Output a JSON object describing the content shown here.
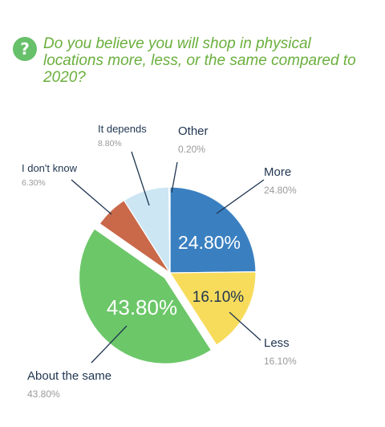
{
  "header": {
    "icon": "question-icon",
    "icon_glyph": "?",
    "question": "Do you believe you will shop in physical locations more, less, or the same compared to 2020?"
  },
  "colors": {
    "question": "#6aaf3d",
    "label": "#1f3550",
    "percent_sub": "#9a9a9a",
    "leader": "#1f3550"
  },
  "chart_data": {
    "type": "pie",
    "start_angle_deg": 0,
    "slices": [
      {
        "label": "More",
        "value": 24.8,
        "percent_label": "24.80%",
        "inner_label": "24.80%",
        "color": "#3a80c1",
        "inner_text_color": "#ffffff",
        "offset": false
      },
      {
        "label": "Less",
        "value": 16.1,
        "percent_label": "16.10%",
        "inner_label": "16.10%",
        "color": "#f7dc5c",
        "inner_text_color": "#1f3550",
        "offset": false
      },
      {
        "label": "About the same",
        "value": 43.8,
        "percent_label": "43.80%",
        "inner_label": "43.80%",
        "color": "#6cc769",
        "inner_text_color": "#ffffff",
        "offset": true
      },
      {
        "label": "I don't know",
        "value": 6.3,
        "percent_label": "6.30%",
        "inner_label": "",
        "color": "#c9694a",
        "inner_text_color": "#ffffff",
        "offset": false
      },
      {
        "label": "It depends",
        "value": 8.8,
        "percent_label": "8.80%",
        "inner_label": "",
        "color": "#cce6f4",
        "inner_text_color": "#1f3550",
        "offset": false
      },
      {
        "label": "Other",
        "value": 0.2,
        "percent_label": "0.20%",
        "inner_label": "",
        "color": "#3a80c1",
        "inner_text_color": "#ffffff",
        "offset": false
      }
    ]
  }
}
